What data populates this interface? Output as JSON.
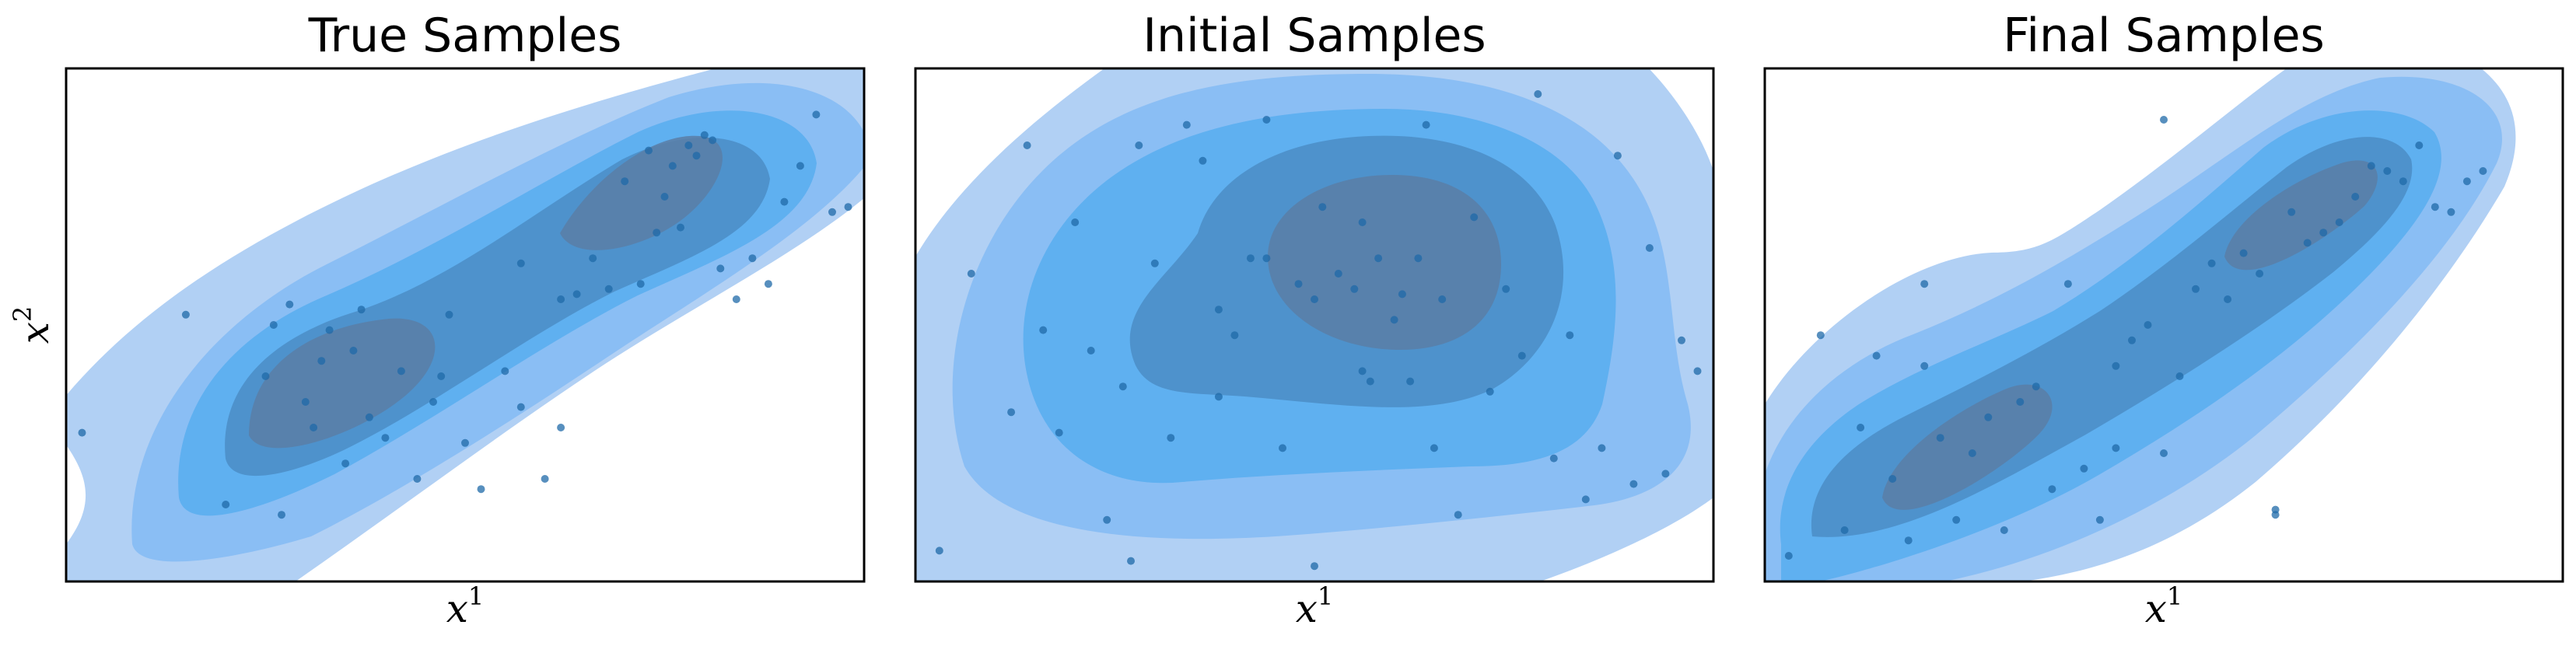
{
  "colors": {
    "fill_light": "#a9cbf3",
    "fill_mid": "#86bbf4",
    "fill_core": "#5aaef0",
    "fill_dark": "#4d8fc8",
    "fill_deep": "#5a7ea6",
    "point": "#1f6aa8"
  },
  "ylabel": {
    "base": "x",
    "sup": "2"
  },
  "xlabel": {
    "base": "x",
    "sup": "1"
  },
  "chart_data": [
    {
      "type": "scatter",
      "title": "True Samples",
      "subtype": "kde-contour-with-scatter",
      "xlim": [
        0,
        1
      ],
      "ylim": [
        0,
        1
      ],
      "grid": false,
      "x": [
        0.02,
        0.15,
        0.25,
        0.27,
        0.28,
        0.3,
        0.31,
        0.33,
        0.35,
        0.36,
        0.37,
        0.38,
        0.4,
        0.42,
        0.44,
        0.46,
        0.48,
        0.5,
        0.52,
        0.55,
        0.57,
        0.6,
        0.62,
        0.64,
        0.66,
        0.68,
        0.7,
        0.72,
        0.73,
        0.74,
        0.75,
        0.76,
        0.77,
        0.78,
        0.79,
        0.8,
        0.81,
        0.82,
        0.84,
        0.86,
        0.88,
        0.9,
        0.92,
        0.94,
        0.96,
        0.98,
        0.2,
        0.26,
        0.32,
        0.47,
        0.57,
        0.62
      ],
      "y": [
        0.29,
        0.52,
        0.4,
        0.13,
        0.54,
        0.35,
        0.3,
        0.49,
        0.23,
        0.45,
        0.53,
        0.32,
        0.28,
        0.41,
        0.2,
        0.35,
        0.52,
        0.27,
        0.18,
        0.41,
        0.34,
        0.2,
        0.3,
        0.56,
        0.63,
        0.57,
        0.78,
        0.58,
        0.84,
        0.68,
        0.75,
        0.81,
        0.69,
        0.85,
        0.83,
        0.87,
        0.86,
        0.61,
        0.55,
        0.63,
        0.58,
        0.74,
        0.81,
        0.91,
        0.72,
        0.73,
        0.15,
        0.5,
        0.43,
        0.4,
        0.62,
        0.55
      ]
    },
    {
      "type": "scatter",
      "title": "Initial Samples",
      "subtype": "kde-contour-with-scatter",
      "xlim": [
        0,
        1
      ],
      "ylim": [
        0,
        1
      ],
      "grid": false,
      "x": [
        0.03,
        0.07,
        0.12,
        0.14,
        0.16,
        0.18,
        0.2,
        0.22,
        0.24,
        0.26,
        0.28,
        0.3,
        0.32,
        0.34,
        0.36,
        0.38,
        0.4,
        0.42,
        0.44,
        0.46,
        0.48,
        0.5,
        0.51,
        0.53,
        0.55,
        0.56,
        0.57,
        0.58,
        0.6,
        0.61,
        0.62,
        0.63,
        0.64,
        0.65,
        0.66,
        0.68,
        0.7,
        0.72,
        0.74,
        0.76,
        0.78,
        0.8,
        0.82,
        0.84,
        0.86,
        0.88,
        0.9,
        0.92,
        0.94,
        0.96,
        0.98,
        0.38,
        0.5,
        0.56,
        0.27,
        0.44
      ],
      "y": [
        0.06,
        0.6,
        0.33,
        0.85,
        0.49,
        0.29,
        0.7,
        0.45,
        0.12,
        0.38,
        0.85,
        0.62,
        0.28,
        0.89,
        0.82,
        0.53,
        0.48,
        0.63,
        0.9,
        0.26,
        0.58,
        0.55,
        0.73,
        0.6,
        0.57,
        0.7,
        0.39,
        0.63,
        0.51,
        0.56,
        0.39,
        0.63,
        0.89,
        0.26,
        0.55,
        0.13,
        0.71,
        0.37,
        0.57,
        0.44,
        0.95,
        0.24,
        0.48,
        0.16,
        0.26,
        0.83,
        0.19,
        0.65,
        0.21,
        0.47,
        0.41,
        0.36,
        0.03,
        0.41,
        0.04,
        0.63
      ]
    },
    {
      "type": "scatter",
      "title": "Final Samples",
      "subtype": "kde-contour-with-scatter",
      "xlim": [
        0,
        1
      ],
      "ylim": [
        0,
        1
      ],
      "grid": false,
      "x": [
        0.03,
        0.07,
        0.1,
        0.12,
        0.14,
        0.16,
        0.18,
        0.2,
        0.22,
        0.24,
        0.26,
        0.28,
        0.3,
        0.32,
        0.34,
        0.36,
        0.38,
        0.4,
        0.42,
        0.44,
        0.46,
        0.48,
        0.5,
        0.52,
        0.54,
        0.56,
        0.58,
        0.6,
        0.62,
        0.64,
        0.66,
        0.68,
        0.7,
        0.72,
        0.74,
        0.76,
        0.78,
        0.8,
        0.82,
        0.84,
        0.86,
        0.88,
        0.9,
        0.5,
        0.64,
        0.2,
        0.44
      ],
      "y": [
        0.05,
        0.48,
        0.1,
        0.3,
        0.44,
        0.2,
        0.08,
        0.42,
        0.28,
        0.12,
        0.25,
        0.32,
        0.1,
        0.35,
        0.38,
        0.18,
        0.58,
        0.22,
        0.12,
        0.42,
        0.47,
        0.5,
        0.25,
        0.4,
        0.57,
        0.62,
        0.55,
        0.64,
        0.6,
        0.13,
        0.72,
        0.66,
        0.68,
        0.7,
        0.75,
        0.81,
        0.8,
        0.78,
        0.85,
        0.73,
        0.72,
        0.78,
        0.8,
        0.9,
        0.14,
        0.58,
        0.26
      ]
    }
  ]
}
